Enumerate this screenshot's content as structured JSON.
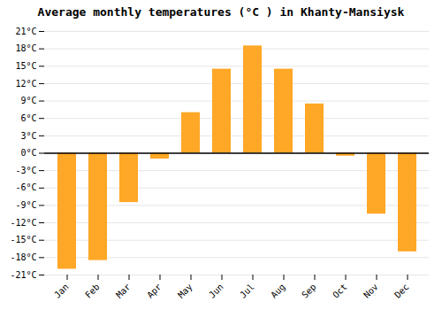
{
  "chart_data": {
    "type": "bar",
    "title": "Average monthly temperatures (°C ) in Khanty-Mansiysk",
    "categories": [
      "Jan",
      "Feb",
      "Mar",
      "Apr",
      "May",
      "Jun",
      "Jul",
      "Aug",
      "Sep",
      "Oct",
      "Nov",
      "Dec"
    ],
    "values": [
      -20,
      -18.5,
      -8.5,
      -1,
      7,
      14.5,
      18.5,
      14.5,
      8.5,
      -0.5,
      -10.5,
      -17
    ],
    "color": "#FFA726",
    "ylim": [
      -21,
      21
    ],
    "yticks": [
      {
        "value": -21,
        "label": "-21°C"
      },
      {
        "value": -18,
        "label": "-18°C"
      },
      {
        "value": -15,
        "label": "-15°C"
      },
      {
        "value": -12,
        "label": "-12°C"
      },
      {
        "value": -9,
        "label": "-9°C"
      },
      {
        "value": -6,
        "label": "-6°C"
      },
      {
        "value": -3,
        "label": "-3°C"
      },
      {
        "value": 0,
        "label": "0°C"
      },
      {
        "value": 3,
        "label": "3°C"
      },
      {
        "value": 6,
        "label": "6°C"
      },
      {
        "value": 9,
        "label": "9°C"
      },
      {
        "value": 12,
        "label": "12°C"
      },
      {
        "value": 15,
        "label": "15°C"
      },
      {
        "value": 18,
        "label": "18°C"
      },
      {
        "value": 21,
        "label": "21°C"
      }
    ],
    "grid": true
  }
}
